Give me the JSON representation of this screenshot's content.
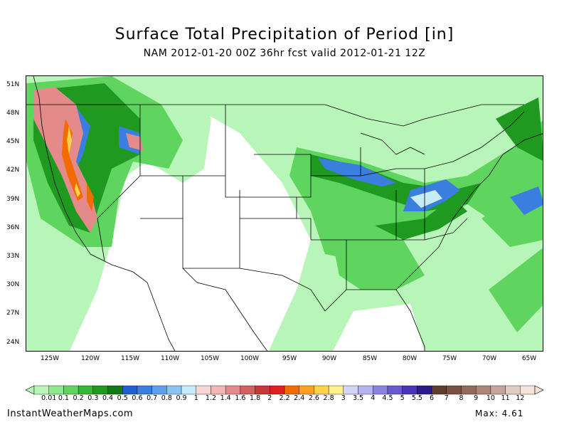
{
  "title": "Surface Total Precipitation of Period [in]",
  "subtitle": "NAM 2012-01-20 00Z 36hr fcst valid 2012-01-21 12Z",
  "latitude_labels": [
    "51N",
    "48N",
    "45N",
    "42N",
    "39N",
    "36N",
    "33N",
    "30N",
    "27N",
    "24N"
  ],
  "longitude_labels": [
    "125W",
    "120W",
    "115W",
    "110W",
    "105W",
    "100W",
    "95W",
    "90W",
    "85W",
    "80W",
    "75W",
    "70W",
    "65W"
  ],
  "colorbar": {
    "labels": [
      "0.01",
      "0.1",
      "0.2",
      "0.3",
      "0.4",
      "0.5",
      "0.6",
      "0.7",
      "0.8",
      "0.9",
      "1",
      "1.2",
      "1.4",
      "1.6",
      "1.8",
      "2",
      "2.2",
      "2.4",
      "2.6",
      "2.8",
      "3",
      "3.5",
      "4",
      "4.5",
      "5",
      "5.5",
      "6",
      "7",
      "8",
      "9",
      "10",
      "11",
      "12"
    ],
    "colors": [
      "#b8f5b8",
      "#8ee88e",
      "#5fd45f",
      "#35b835",
      "#1f991f",
      "#127a12",
      "#1f5fcf",
      "#3a7fe0",
      "#5fa0ec",
      "#8cc3f5",
      "#c6ecf8",
      "#f8d6d6",
      "#f2b6b6",
      "#e48a8a",
      "#d46060",
      "#c83838",
      "#e02020",
      "#f26a00",
      "#ff9f1f",
      "#ffd24a",
      "#fff08c",
      "#d4d4f8",
      "#b4b4f0",
      "#8c84e0",
      "#6a5ad0",
      "#4a34b8",
      "#2c1a8c",
      "#5e3c2e",
      "#7a5040",
      "#94685a",
      "#ad8678",
      "#c6a49a",
      "#e2ccc4",
      "#f4e4dc"
    ]
  },
  "footer": {
    "site": "InstantWeatherMaps.com",
    "max_label": "Max: 4.61"
  }
}
